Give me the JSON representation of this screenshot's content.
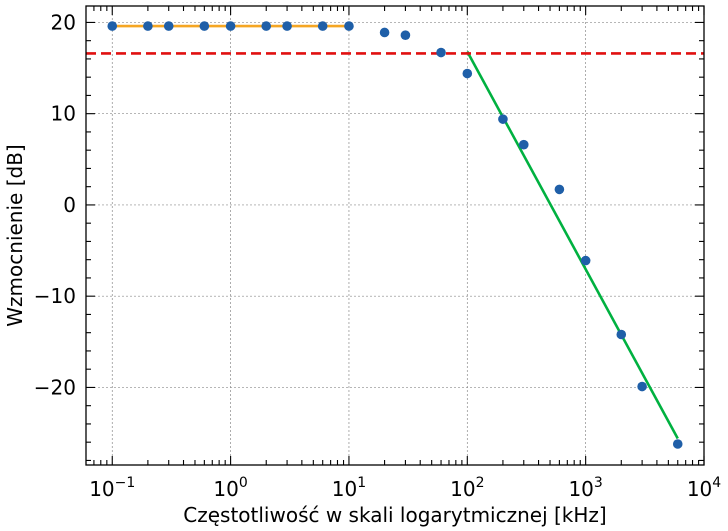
{
  "chart_data": {
    "type": "scatter",
    "title": "",
    "xlabel": "Częstotliwość w skali logarytmicznej [kHz]",
    "ylabel": "Wzmocnienie [dB]",
    "xscale": "log",
    "xlim": [
      0.06,
      10000
    ],
    "ylim": [
      -28.5,
      21.8
    ],
    "grid": true,
    "legend": "none",
    "x_ticks": [
      {
        "value": 0.1,
        "base": "10",
        "exp": "−1"
      },
      {
        "value": 1,
        "base": "10",
        "exp": "0"
      },
      {
        "value": 10,
        "base": "10",
        "exp": "1"
      },
      {
        "value": 100,
        "base": "10",
        "exp": "2"
      },
      {
        "value": 1000,
        "base": "10",
        "exp": "3"
      },
      {
        "value": 10000,
        "base": "10",
        "exp": "4"
      }
    ],
    "y_ticks": [
      {
        "value": 20,
        "label": "20"
      },
      {
        "value": 10,
        "label": "10"
      },
      {
        "value": 0,
        "label": "0"
      },
      {
        "value": -10,
        "label": "−10"
      },
      {
        "value": -20,
        "label": "−20"
      }
    ],
    "colors": {
      "points": "#1f5fa8",
      "flat_fit": "#f5a623",
      "slope_fit": "#00b140",
      "threshold": "#e01010",
      "grid": "#8a8a8a"
    },
    "points": [
      {
        "x": 0.1,
        "y": 19.6
      },
      {
        "x": 0.2,
        "y": 19.6
      },
      {
        "x": 0.3,
        "y": 19.6
      },
      {
        "x": 0.6,
        "y": 19.6
      },
      {
        "x": 1,
        "y": 19.6
      },
      {
        "x": 2,
        "y": 19.6
      },
      {
        "x": 3,
        "y": 19.6
      },
      {
        "x": 6,
        "y": 19.6
      },
      {
        "x": 10,
        "y": 19.6
      },
      {
        "x": 20,
        "y": 18.9
      },
      {
        "x": 30,
        "y": 18.6
      },
      {
        "x": 60,
        "y": 16.7
      },
      {
        "x": 100,
        "y": 14.4
      },
      {
        "x": 200,
        "y": 9.4
      },
      {
        "x": 300,
        "y": 6.6
      },
      {
        "x": 600,
        "y": 1.7
      },
      {
        "x": 1000,
        "y": -6.1
      },
      {
        "x": 2000,
        "y": -14.2
      },
      {
        "x": 3000,
        "y": -19.9
      },
      {
        "x": 6000,
        "y": -26.2
      }
    ],
    "lines": [
      {
        "kind": "fit",
        "color_key": "flat_fit",
        "dash": false,
        "x": [
          0.1,
          10
        ],
        "y": [
          19.6,
          19.6
        ]
      },
      {
        "kind": "fit",
        "color_key": "slope_fit",
        "dash": false,
        "x": [
          100,
          6000
        ],
        "y": [
          16.8,
          -25.6
        ]
      },
      {
        "kind": "threshold",
        "color_key": "threshold",
        "dash": true,
        "x": [
          0.06,
          10000
        ],
        "y": [
          16.6,
          16.6
        ]
      }
    ]
  }
}
